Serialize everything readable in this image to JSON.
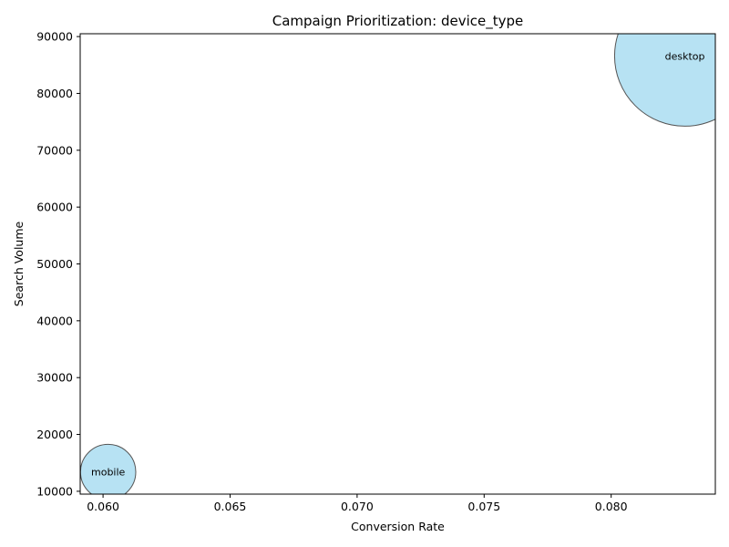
{
  "chart_data": {
    "type": "scatter",
    "title": "Campaign Prioritization: device_type",
    "xlabel": "Conversion Rate",
    "ylabel": "Search Volume",
    "xlim": [
      0.0591,
      0.0841
    ],
    "ylim": [
      9500,
      90500
    ],
    "xticks": [
      0.06,
      0.065,
      0.07,
      0.075,
      0.08
    ],
    "xtick_labels": [
      "0.060",
      "0.065",
      "0.070",
      "0.075",
      "0.080"
    ],
    "yticks": [
      10000,
      20000,
      30000,
      40000,
      50000,
      60000,
      70000,
      80000,
      90000
    ],
    "ytick_labels": [
      "10000",
      "20000",
      "30000",
      "40000",
      "50000",
      "60000",
      "70000",
      "80000",
      "90000"
    ],
    "grid": false,
    "colors": {
      "fill": "#87ceeb",
      "edge": "#555555"
    },
    "points": [
      {
        "label": "desktop",
        "x": 0.0829,
        "y": 86600,
        "size": 86600
      },
      {
        "label": "mobile",
        "x": 0.0602,
        "y": 13400,
        "size": 13400
      }
    ]
  }
}
